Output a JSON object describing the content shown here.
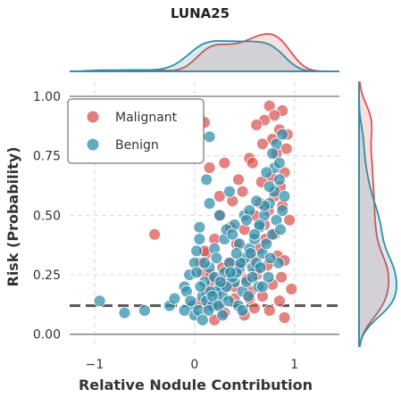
{
  "chart_data": {
    "type": "scatter",
    "title": "LUNA25",
    "xlabel": "Relative Nodule Contribution",
    "ylabel": "Risk (Probability)",
    "xlim": [
      -1.25,
      1.45
    ],
    "ylim": [
      -0.05,
      1.06
    ],
    "xticks": [
      -1,
      0,
      1
    ],
    "xtick_labels": [
      "−1",
      "0",
      "1"
    ],
    "yticks": [
      0.0,
      0.25,
      0.5,
      0.75,
      1.0
    ],
    "ytick_labels": [
      "0.00",
      "0.25",
      "0.50",
      "0.75",
      "1.00"
    ],
    "grid": true,
    "legend_position": "upper-left",
    "reference_lines": [
      {
        "y": 1.0,
        "style": "solid"
      },
      {
        "y": 0.0,
        "style": "solid"
      },
      {
        "y": 0.12,
        "style": "dashed"
      }
    ],
    "series": [
      {
        "name": "Malignant",
        "color": "#d9534f",
        "x": [
          -0.4,
          0.75,
          0.88,
          0.8,
          0.7,
          0.62,
          0.85,
          0.93,
          0.78,
          0.05,
          0.1,
          0.68,
          0.92,
          0.82,
          0.55,
          0.3,
          0.15,
          0.9,
          0.77,
          0.67,
          0.86,
          0.48,
          0.25,
          0.38,
          0.88,
          0.74,
          0.6,
          0.95,
          0.7,
          0.5,
          0.8,
          0.2,
          0.42,
          0.65,
          0.12,
          0.83,
          0.58,
          0.9,
          0.35,
          0.73,
          0.28,
          0.45,
          0.08,
          0.62,
          0.87,
          0.52,
          0.18,
          0.78,
          0.33,
          0.97,
          0.56,
          0.22,
          0.68,
          0.4,
          0.85,
          0.03,
          0.14,
          0.6,
          0.75,
          0.3,
          0.5,
          0.9,
          0.2,
          0.66,
          0.44,
          0.1,
          0.36,
          0.58,
          0.26,
          0.8,
          0.48,
          0.16,
          0.71,
          0.4,
          0.06,
          0.55,
          0.3,
          0.62,
          0.22,
          0.12
        ],
        "y": [
          0.42,
          0.96,
          0.94,
          0.92,
          0.9,
          0.88,
          0.86,
          0.84,
          0.82,
          0.91,
          0.89,
          0.8,
          0.78,
          0.76,
          0.74,
          0.72,
          0.7,
          0.68,
          0.66,
          0.64,
          0.62,
          0.6,
          0.58,
          0.56,
          0.54,
          0.52,
          0.5,
          0.48,
          0.46,
          0.44,
          0.42,
          0.4,
          0.38,
          0.36,
          0.34,
          0.33,
          0.32,
          0.31,
          0.3,
          0.29,
          0.28,
          0.27,
          0.26,
          0.25,
          0.24,
          0.23,
          0.22,
          0.21,
          0.2,
          0.19,
          0.18,
          0.17,
          0.16,
          0.15,
          0.14,
          0.13,
          0.12,
          0.11,
          0.1,
          0.09,
          0.08,
          0.07,
          0.06,
          0.55,
          0.65,
          0.35,
          0.45,
          0.72,
          0.5,
          0.58,
          0.3,
          0.25,
          0.4,
          0.2,
          0.3,
          0.15,
          0.22,
          0.27,
          0.12,
          0.18
        ]
      },
      {
        "name": "Benign",
        "color": "#2e8eaa",
        "x": [
          -0.95,
          -0.7,
          -0.5,
          -0.25,
          -0.2,
          -0.1,
          -0.05,
          0.0,
          0.02,
          0.05,
          -0.08,
          0.1,
          0.15,
          0.2,
          0.25,
          0.3,
          0.35,
          0.4,
          0.45,
          0.5,
          0.55,
          0.6,
          0.65,
          0.7,
          0.75,
          0.8,
          0.85,
          -0.02,
          0.08,
          0.12,
          0.18,
          0.22,
          0.28,
          0.32,
          0.38,
          0.42,
          0.48,
          0.52,
          0.58,
          0.62,
          0.68,
          0.72,
          0.78,
          0.82,
          0.88,
          0.0,
          0.04,
          0.14,
          0.24,
          0.34,
          0.44,
          0.54,
          0.64,
          0.74,
          0.84,
          -0.04,
          0.06,
          0.16,
          0.26,
          0.36,
          0.46,
          0.56,
          0.66,
          0.76,
          0.86,
          0.1,
          0.2,
          0.3,
          0.4,
          0.5,
          0.6,
          0.7,
          0.8,
          0.9,
          0.15,
          0.35,
          0.55,
          0.75,
          0.05,
          0.25,
          0.45,
          0.65,
          0.85,
          0.12,
          0.32,
          0.52,
          0.72,
          0.02,
          0.22,
          0.42,
          0.62,
          0.82,
          0.18,
          0.38,
          0.58,
          0.78,
          0.08,
          0.28,
          0.48,
          0.68,
          0.88,
          -0.1,
          0.15
        ],
        "y": [
          0.14,
          0.09,
          0.1,
          0.12,
          0.15,
          0.2,
          0.25,
          0.3,
          0.35,
          0.4,
          0.18,
          0.22,
          0.28,
          0.24,
          0.2,
          0.26,
          0.3,
          0.22,
          0.28,
          0.32,
          0.36,
          0.4,
          0.45,
          0.5,
          0.55,
          0.6,
          0.65,
          0.12,
          0.16,
          0.14,
          0.12,
          0.18,
          0.16,
          0.2,
          0.24,
          0.26,
          0.18,
          0.22,
          0.28,
          0.3,
          0.34,
          0.38,
          0.42,
          0.48,
          0.52,
          0.08,
          0.1,
          0.1,
          0.12,
          0.14,
          0.12,
          0.16,
          0.2,
          0.24,
          0.3,
          0.14,
          0.2,
          0.18,
          0.22,
          0.26,
          0.3,
          0.34,
          0.28,
          0.32,
          0.44,
          0.3,
          0.36,
          0.4,
          0.46,
          0.5,
          0.42,
          0.54,
          0.7,
          0.58,
          0.55,
          0.6,
          0.52,
          0.62,
          0.45,
          0.5,
          0.38,
          0.46,
          0.72,
          0.65,
          0.44,
          0.48,
          0.68,
          0.26,
          0.32,
          0.34,
          0.56,
          0.8,
          0.16,
          0.42,
          0.24,
          0.76,
          0.06,
          0.08,
          0.1,
          0.2,
          0.84,
          0.1,
          0.83
        ]
      }
    ]
  }
}
